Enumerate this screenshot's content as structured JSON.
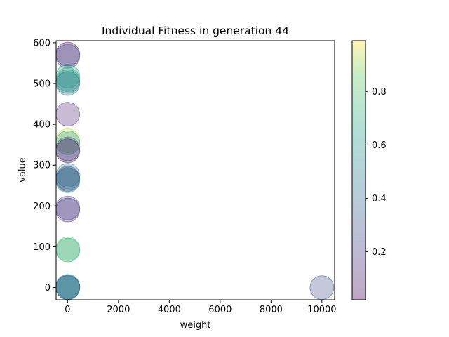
{
  "chart_data": {
    "type": "scatter",
    "title": "Individual Fitness in generation 44",
    "xlabel": "weight",
    "ylabel": "value",
    "xlim": [
      -450,
      10500
    ],
    "ylim": [
      -30,
      605
    ],
    "xticks": [
      0,
      2000,
      4000,
      6000,
      8000,
      10000
    ],
    "yticks": [
      0,
      100,
      200,
      300,
      400,
      500,
      600
    ],
    "grid": false,
    "colorbar": {
      "range": [
        0.02,
        0.99
      ],
      "ticks": [
        0.2,
        0.4,
        0.6,
        0.8
      ],
      "colormap": "viridis"
    },
    "marker_alpha": 0.3,
    "points": [
      {
        "x": 10,
        "y": 572,
        "c": 0.05
      },
      {
        "x": 10,
        "y": 567,
        "c": 0.25
      },
      {
        "x": 10,
        "y": 518,
        "c": 0.62
      },
      {
        "x": 10,
        "y": 510,
        "c": 0.75
      },
      {
        "x": 10,
        "y": 505,
        "c": 0.55
      },
      {
        "x": 10,
        "y": 500,
        "c": 0.45
      },
      {
        "x": 10,
        "y": 425,
        "c": 0.12
      },
      {
        "x": 10,
        "y": 360,
        "c": 0.95
      },
      {
        "x": 10,
        "y": 355,
        "c": 0.6
      },
      {
        "x": 10,
        "y": 340,
        "c": 0.35
      },
      {
        "x": 10,
        "y": 335,
        "c": 0.05
      },
      {
        "x": 10,
        "y": 275,
        "c": 0.45
      },
      {
        "x": 10,
        "y": 268,
        "c": 0.3
      },
      {
        "x": 10,
        "y": 265,
        "c": 0.2
      },
      {
        "x": 10,
        "y": 262,
        "c": 0.55
      },
      {
        "x": 10,
        "y": 195,
        "c": 0.25
      },
      {
        "x": 10,
        "y": 190,
        "c": 0.15
      },
      {
        "x": 10,
        "y": 95,
        "c": 0.85
      },
      {
        "x": 10,
        "y": 92,
        "c": 0.65
      },
      {
        "x": 10,
        "y": 3,
        "c": 0.4
      },
      {
        "x": 10,
        "y": 1,
        "c": 0.5
      },
      {
        "x": 10,
        "y": 0,
        "c": 0.6
      },
      {
        "x": 10,
        "y": 0,
        "c": 0.35
      },
      {
        "x": 10000,
        "y": 0,
        "c": 0.25
      }
    ]
  }
}
